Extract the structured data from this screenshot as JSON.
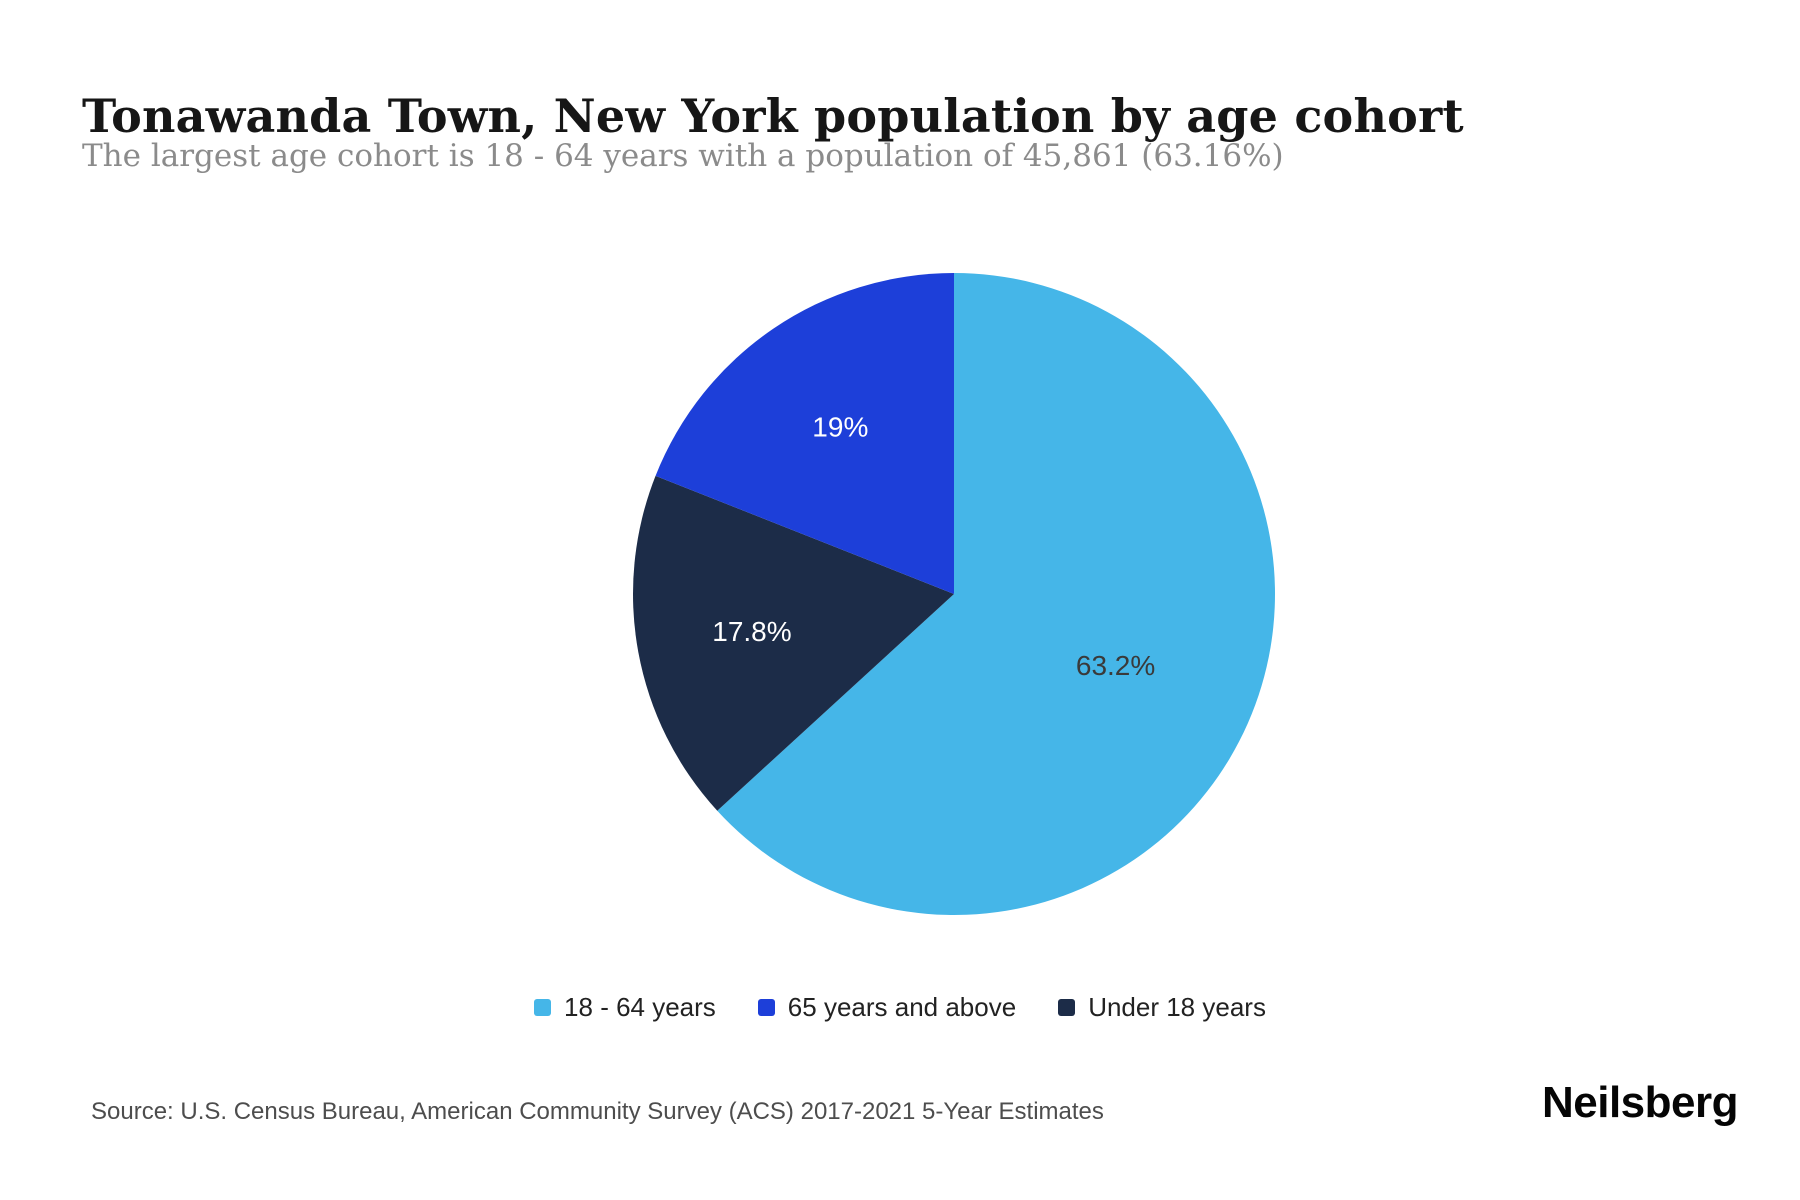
{
  "page": {
    "title": "Tonawanda Town, New York population by age cohort",
    "subtitle": "The largest age cohort is 18 - 64 years with a population of 45,861 (63.16%)",
    "source": "Source: U.S. Census Bureau, American Community Survey (ACS) 2017-2021 5-Year Estimates",
    "brand": "Neilsberg"
  },
  "chart_data": {
    "type": "pie",
    "title": "Tonawanda Town, New York population by age cohort",
    "start_angle_deg": 0,
    "direction": "clockwise",
    "legend_position": "bottom",
    "slices": [
      {
        "label": "18 - 64 years",
        "value": 63.2,
        "display": "63.2%",
        "color": "#45b6e8",
        "label_color": "#3a3a3a",
        "label_r": 0.55
      },
      {
        "label": "Under 18 years",
        "value": 17.8,
        "display": "17.8%",
        "color": "#1c2c48",
        "label_color": "#ffffff",
        "label_r": 0.64
      },
      {
        "label": "65 years and above",
        "value": 19.0,
        "display": "19%",
        "color": "#1d3fd9",
        "label_color": "#ffffff",
        "label_r": 0.63
      }
    ],
    "legend": [
      {
        "label": "18 - 64 years",
        "color": "#45b6e8"
      },
      {
        "label": "65 years and above",
        "color": "#1d3fd9"
      },
      {
        "label": "Under 18 years",
        "color": "#1c2c48"
      }
    ]
  }
}
